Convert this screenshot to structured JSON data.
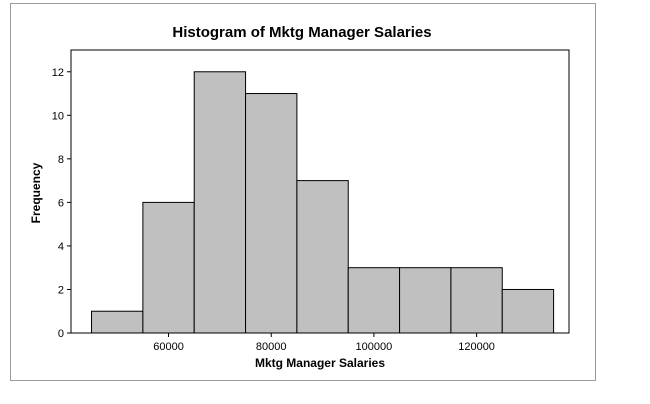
{
  "chart_data": {
    "type": "bar",
    "title": "Histogram of Mktg Manager Salaries",
    "xlabel": "Mktg Manager Salaries",
    "ylabel": "Frequency",
    "bins": [
      {
        "start": 45000,
        "end": 55000,
        "count": 1
      },
      {
        "start": 55000,
        "end": 65000,
        "count": 6
      },
      {
        "start": 65000,
        "end": 75000,
        "count": 12
      },
      {
        "start": 75000,
        "end": 85000,
        "count": 11
      },
      {
        "start": 85000,
        "end": 95000,
        "count": 7
      },
      {
        "start": 95000,
        "end": 105000,
        "count": 3
      },
      {
        "start": 105000,
        "end": 115000,
        "count": 3
      },
      {
        "start": 115000,
        "end": 125000,
        "count": 3
      },
      {
        "start": 125000,
        "end": 135000,
        "count": 2
      }
    ],
    "xlim": [
      41000,
      138000
    ],
    "ylim": [
      0,
      13
    ],
    "xticks": [
      "60000",
      "80000",
      "100000",
      "120000"
    ],
    "yticks": [
      "0",
      "2",
      "4",
      "6",
      "8",
      "10",
      "12"
    ],
    "bar_color": "#c0c0c0",
    "bar_edge_color": "#000000",
    "grid": false,
    "legend": "none"
  }
}
